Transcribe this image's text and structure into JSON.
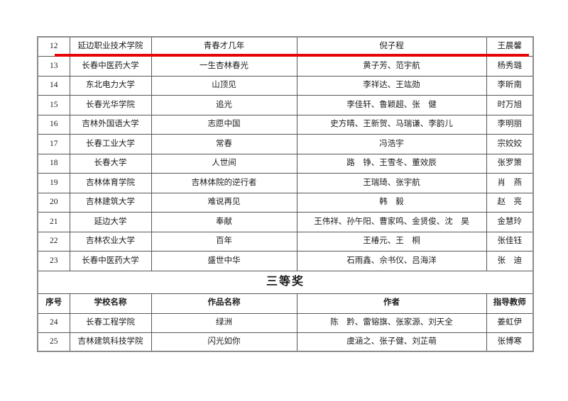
{
  "table": {
    "header_labels": [
      "序号",
      "学校名称",
      "作品名称",
      "作者",
      "指导教师"
    ],
    "rows_upper": [
      {
        "no": "12",
        "school": "延边职业技术学院",
        "work": "青春才几年",
        "authors": "倪子程",
        "teacher": "王晨馨"
      },
      {
        "no": "13",
        "school": "长春中医药大学",
        "work": "一生杏林春光",
        "authors": "黄子芳、范宇航",
        "teacher": "杨秀璐"
      },
      {
        "no": "14",
        "school": "东北电力大学",
        "work": "山顶见",
        "authors": "李祥达、王竑勋",
        "teacher": "李昕南"
      },
      {
        "no": "15",
        "school": "长春光华学院",
        "work": "追光",
        "authors": "李佳轩、鲁颖超、张　健",
        "teacher": "时万旭"
      },
      {
        "no": "16",
        "school": "吉林外国语大学",
        "work": "志愿中国",
        "authors": "史方晴、王新贺、马瑞谦、李韵儿",
        "teacher": "李明丽"
      },
      {
        "no": "17",
        "school": "长春工业大学",
        "work": "常春",
        "authors": "冯浩宇",
        "teacher": "宗姣姣"
      },
      {
        "no": "18",
        "school": "长春大学",
        "work": "人世间",
        "authors": "路　铮、王雪冬、董效辰",
        "teacher": "张罗箫"
      },
      {
        "no": "19",
        "school": "吉林体育学院",
        "work": "吉林体院的逆行者",
        "authors": "王瑞琦、张宇航",
        "teacher": "肖　燕"
      },
      {
        "no": "20",
        "school": "吉林建筑大学",
        "work": "难说再见",
        "authors": "韩　毅",
        "teacher": "赵　亮"
      },
      {
        "no": "21",
        "school": "延边大学",
        "work": "奉献",
        "authors": "王伟祥、孙午阳、曹家鸣、金贤俊、沈　昊",
        "teacher": "金慧玲"
      },
      {
        "no": "22",
        "school": "吉林农业大学",
        "work": "百年",
        "authors": "王椿元、王　桐",
        "teacher": "张佳钰"
      },
      {
        "no": "23",
        "school": "长春中医药大学",
        "work": "盛世中华",
        "authors": "石雨鑫、佘书仪、吕海洋",
        "teacher": "张　迪"
      }
    ],
    "section_heading": "三等奖",
    "rows_lower": [
      {
        "no": "24",
        "school": "长春工程学院",
        "work": "绿洲",
        "authors": "陈　黔、雷镕旗、张家源、刘天全",
        "teacher": "姜虹伊"
      },
      {
        "no": "25",
        "school": "吉林建筑科技学院",
        "work": "闪光如你",
        "authors": "虞涵之、张子健、刘芷萌",
        "teacher": "张博寒"
      }
    ]
  },
  "annotation": {
    "red_line_color": "#e60505"
  }
}
